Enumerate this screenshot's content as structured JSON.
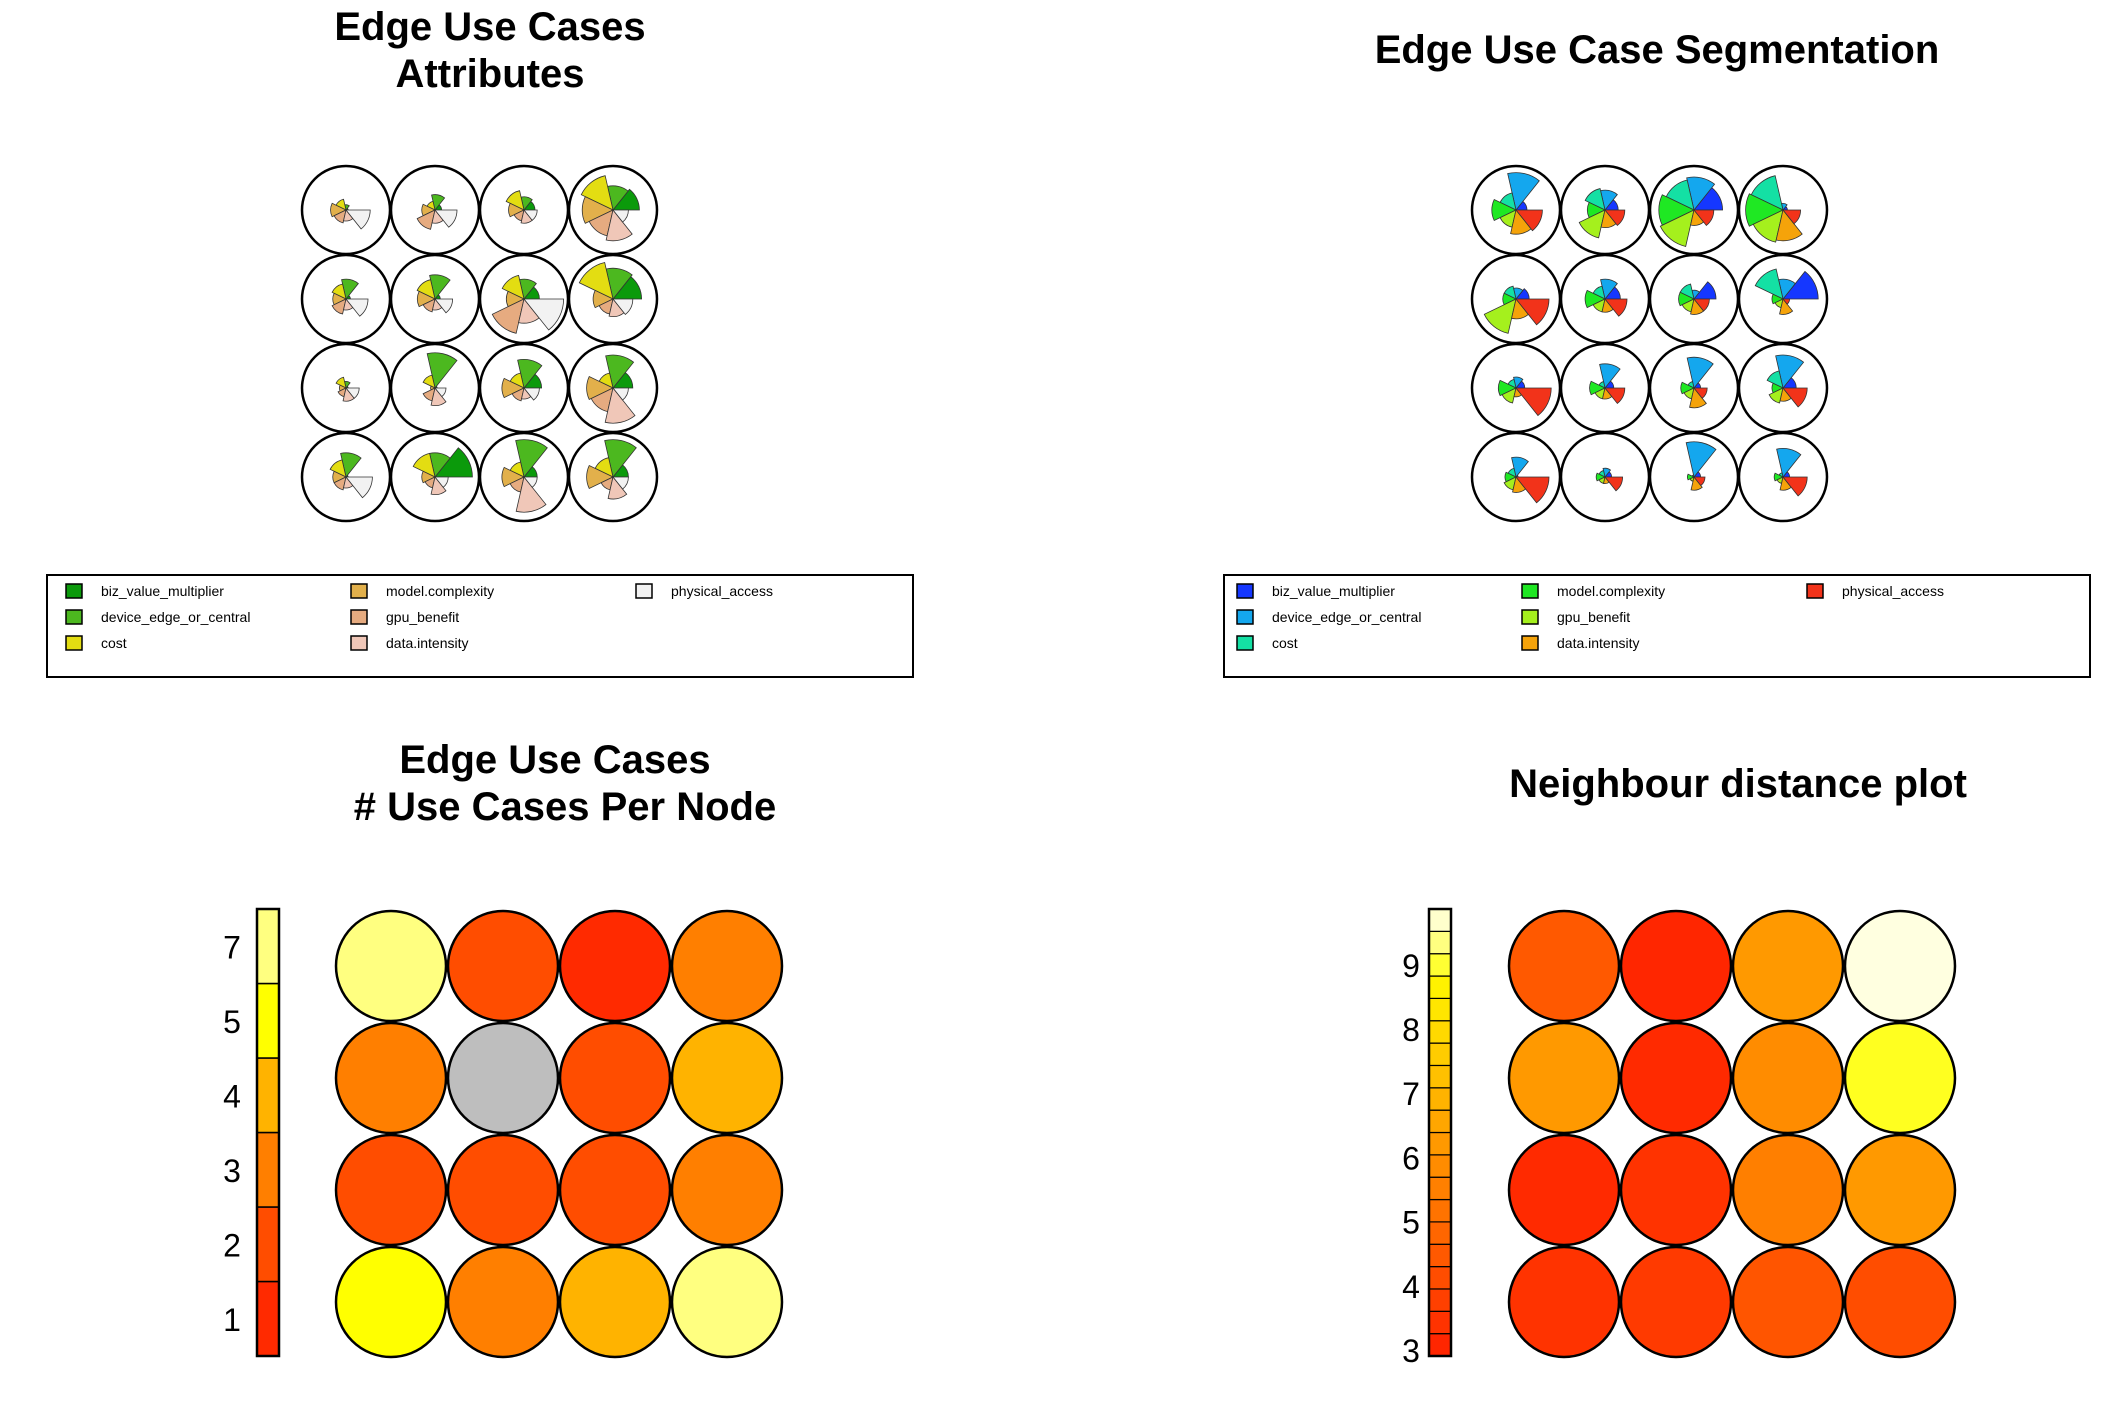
{
  "chart_data": [
    {
      "type": "segments",
      "title": [
        "Edge Use Cases",
        "Attributes"
      ],
      "grid": [
        4,
        4
      ],
      "legend": [
        {
          "name": "biz_value_multiplier",
          "color": "#0b9a0b"
        },
        {
          "name": "device_edge_or_central",
          "color": "#4cb81f"
        },
        {
          "name": "cost",
          "color": "#e3dd12"
        },
        {
          "name": "model.complexity",
          "color": "#e2b04b"
        },
        {
          "name": "gpu_benefit",
          "color": "#e6ab80"
        },
        {
          "name": "data.intensity",
          "color": "#f0c7b8"
        },
        {
          "name": "physical_access",
          "color": "#f2f2f2"
        }
      ],
      "nodes": [
        [
          0.05,
          0.12,
          0.25,
          0.35,
          0.3,
          0.25,
          0.55
        ],
        [
          0.15,
          0.35,
          0.2,
          0.3,
          0.45,
          0.3,
          0.5
        ],
        [
          0.25,
          0.3,
          0.45,
          0.35,
          0.25,
          0.3,
          0.3
        ],
        [
          0.6,
          0.55,
          0.8,
          0.7,
          0.6,
          0.7,
          0.35
        ],
        [
          0.1,
          0.45,
          0.35,
          0.3,
          0.35,
          0.25,
          0.5
        ],
        [
          0.12,
          0.55,
          0.45,
          0.4,
          0.3,
          0.25,
          0.4
        ],
        [
          0.35,
          0.45,
          0.55,
          0.4,
          0.8,
          0.55,
          0.9
        ],
        [
          0.65,
          0.7,
          0.85,
          0.45,
          0.35,
          0.4,
          0.45
        ],
        [
          0.05,
          0.15,
          0.25,
          0.15,
          0.2,
          0.3,
          0.3
        ],
        [
          0.05,
          0.8,
          0.3,
          0.1,
          0.3,
          0.4,
          0.25
        ],
        [
          0.4,
          0.65,
          0.35,
          0.5,
          0.3,
          0.25,
          0.35
        ],
        [
          0.45,
          0.75,
          0.35,
          0.6,
          0.55,
          0.8,
          0.35
        ],
        [
          0.05,
          0.55,
          0.4,
          0.3,
          0.3,
          0.25,
          0.6
        ],
        [
          0.85,
          0.55,
          0.55,
          0.3,
          0.25,
          0.4,
          0.3
        ],
        [
          0.3,
          0.85,
          0.35,
          0.5,
          0.35,
          0.8,
          0.3
        ],
        [
          0.35,
          0.85,
          0.45,
          0.6,
          0.3,
          0.5,
          0.35
        ]
      ]
    },
    {
      "type": "segments",
      "title": [
        "Edge Use Case Segmentation"
      ],
      "grid": [
        4,
        4
      ],
      "legend": [
        {
          "name": "biz_value_multiplier",
          "color": "#1537ff"
        },
        {
          "name": "device_edge_or_central",
          "color": "#14a7ee"
        },
        {
          "name": "cost",
          "color": "#14e0a4"
        },
        {
          "name": "model.complexity",
          "color": "#1fe823"
        },
        {
          "name": "gpu_benefit",
          "color": "#a5f01d"
        },
        {
          "name": "data.intensity",
          "color": "#f5a30a"
        },
        {
          "name": "physical_access",
          "color": "#f2331a"
        }
      ],
      "nodes": [
        [
          0.25,
          0.85,
          0.4,
          0.55,
          0.4,
          0.55,
          0.6
        ],
        [
          0.3,
          0.45,
          0.5,
          0.4,
          0.65,
          0.4,
          0.45
        ],
        [
          0.65,
          0.75,
          0.7,
          0.8,
          0.85,
          0.35,
          0.45
        ],
        [
          0.1,
          0.15,
          0.8,
          0.85,
          0.75,
          0.7,
          0.4
        ],
        [
          0.3,
          0.25,
          0.3,
          0.3,
          0.8,
          0.45,
          0.75
        ],
        [
          0.35,
          0.45,
          0.3,
          0.45,
          0.3,
          0.3,
          0.5
        ],
        [
          0.5,
          0.2,
          0.35,
          0.35,
          0.3,
          0.35,
          0.35
        ],
        [
          0.8,
          0.45,
          0.7,
          0.25,
          0.2,
          0.35,
          0.15
        ],
        [
          0.2,
          0.25,
          0.2,
          0.4,
          0.35,
          0.2,
          0.8
        ],
        [
          0.2,
          0.55,
          0.15,
          0.35,
          0.25,
          0.25,
          0.45
        ],
        [
          0.15,
          0.7,
          0.15,
          0.3,
          0.25,
          0.45,
          0.3
        ],
        [
          0.3,
          0.75,
          0.4,
          0.25,
          0.35,
          0.3,
          0.55
        ],
        [
          0.05,
          0.45,
          0.2,
          0.25,
          0.3,
          0.35,
          0.75
        ],
        [
          0.15,
          0.2,
          0.15,
          0.2,
          0.15,
          0.15,
          0.4
        ],
        [
          0.15,
          0.8,
          0.05,
          0.15,
          0.1,
          0.3,
          0.25
        ],
        [
          0.15,
          0.65,
          0.1,
          0.2,
          0.15,
          0.3,
          0.55
        ]
      ]
    },
    {
      "type": "heatmap",
      "title": [
        "Edge Use Cases",
        "# Use Cases Per Node"
      ],
      "grid": [
        4,
        4
      ],
      "scale": {
        "tick_labels": [
          "1",
          "2",
          "3",
          "4",
          "5",
          "7"
        ],
        "colors": [
          "#ff2a00",
          "#ff4d00",
          "#ff7f00",
          "#ffb300",
          "#ffff00",
          "#ffff80"
        ]
      },
      "values": [
        [
          7,
          2,
          1,
          3
        ],
        [
          3,
          null,
          2,
          4
        ],
        [
          2,
          2,
          2,
          3
        ],
        [
          5,
          3,
          4,
          7
        ]
      ],
      "empty_color": "#bebebe"
    },
    {
      "type": "heatmap",
      "title": [
        "Neighbour distance plot"
      ],
      "grid": [
        4,
        4
      ],
      "scale": {
        "tick_labels": [
          "3",
          "4",
          "5",
          "6",
          "7",
          "8",
          "9"
        ],
        "colors": [
          "#ff2600",
          "#ff3300",
          "#ff4000",
          "#ff4d00",
          "#ff5900",
          "#ff6600",
          "#ff7300",
          "#ff8000",
          "#ff8c00",
          "#ff9900",
          "#ffa600",
          "#ffb300",
          "#ffc000",
          "#ffcc00",
          "#ffd900",
          "#ffe600",
          "#fff200",
          "#ffff33",
          "#ffff80",
          "#ffffcc"
        ]
      },
      "colors": [
        [
          "#ff5900",
          "#ff2600",
          "#ff9900",
          "#ffffe0"
        ],
        [
          "#ff9900",
          "#ff2a00",
          "#ff8c00",
          "#ffff20"
        ],
        [
          "#ff2a00",
          "#ff3300",
          "#ff7f00",
          "#ff9900"
        ],
        [
          "#ff3300",
          "#ff3a00",
          "#ff5500",
          "#ff4d00"
        ]
      ]
    }
  ]
}
